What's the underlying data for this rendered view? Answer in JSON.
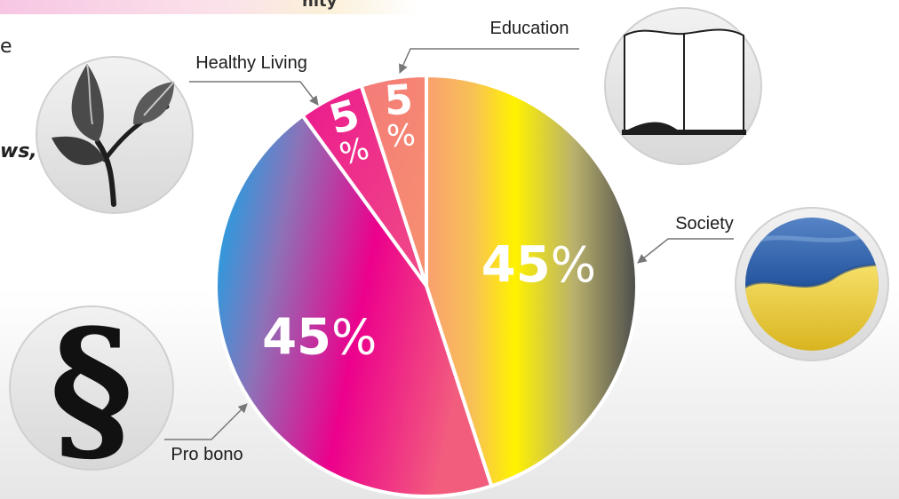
{
  "top_strip_text": "nity",
  "cut_text_1": "e",
  "cut_text_2": "ws,",
  "chart_data": {
    "type": "pie",
    "slices": [
      {
        "label": "Society",
        "value": 45,
        "pct_num": "45",
        "pct_sym": "%"
      },
      {
        "label": "Pro bono",
        "value": 45,
        "pct_num": "45",
        "pct_sym": "%"
      },
      {
        "label": "Healthy Living",
        "value": 5,
        "pct_num": "5",
        "pct_sym": "%"
      },
      {
        "label": "Education",
        "value": 5,
        "pct_num": "5",
        "pct_sym": "%"
      }
    ]
  },
  "icons": [
    {
      "name": "leaf-icon",
      "for": "Healthy Living"
    },
    {
      "name": "open-book-icon",
      "for": "Education"
    },
    {
      "name": "ukraine-flag-icon",
      "for": "Society"
    },
    {
      "name": "section-sign-icon",
      "for": "Pro bono",
      "glyph": "§"
    }
  ]
}
